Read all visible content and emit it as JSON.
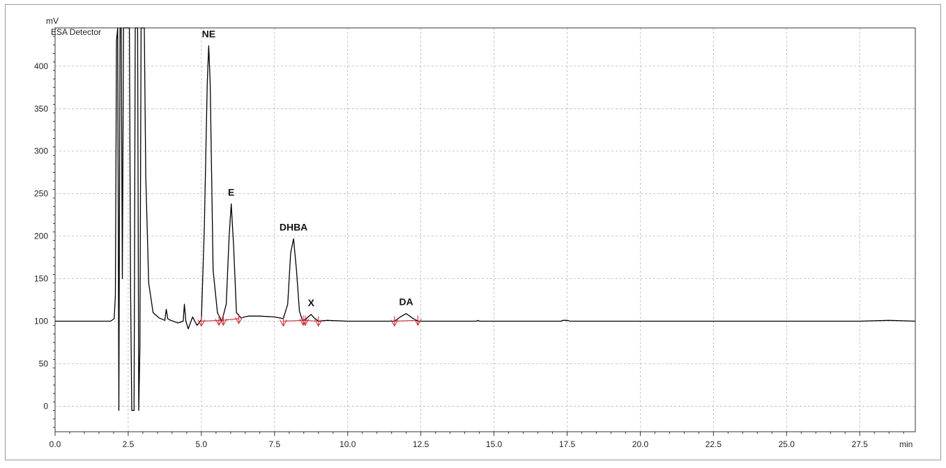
{
  "chart_data": {
    "type": "line",
    "title": "",
    "detector_label": "ESA Detector",
    "ylabel": "mV",
    "xlabel": "min",
    "xlim": [
      0,
      29.4
    ],
    "ylim": [
      -30,
      445
    ],
    "x_ticks": [
      0.0,
      2.5,
      5.0,
      7.5,
      10.0,
      12.5,
      15.0,
      17.5,
      20.0,
      22.5,
      25.0,
      27.5
    ],
    "x_tick_labels": [
      "0.0",
      "2.5",
      "5.0",
      "7.5",
      "10.0",
      "12.5",
      "15.0",
      "17.5",
      "20.0",
      "22.5",
      "25.0",
      "27.5"
    ],
    "y_ticks": [
      0,
      50,
      100,
      150,
      200,
      250,
      300,
      350,
      400
    ],
    "y_tick_labels": [
      "0",
      "50",
      "100",
      "150",
      "200",
      "250",
      "300",
      "350",
      "400"
    ],
    "grid": true,
    "trace_color": "#000000",
    "integration_color": "#d0343c",
    "series": [
      {
        "values_desc": "chromatogram trace",
        "x": [
          0,
          1.0,
          1.9,
          2.02,
          2.06,
          2.1,
          2.14,
          2.18,
          2.22,
          2.26,
          2.3,
          2.34,
          2.38,
          2.42,
          2.46,
          2.5,
          2.54,
          2.58,
          2.62,
          2.66,
          2.7,
          2.74,
          2.78,
          2.82,
          2.86,
          2.9,
          2.94,
          3.0,
          3.05,
          3.1,
          3.2,
          3.35,
          3.55,
          3.75,
          3.8,
          3.85,
          3.95,
          4.2,
          4.38,
          4.42,
          4.47,
          4.55,
          4.7,
          4.85,
          5.0,
          5.1,
          5.2,
          5.25,
          5.3,
          5.4,
          5.55,
          5.7,
          5.85,
          5.95,
          6.02,
          6.1,
          6.2,
          6.35,
          6.6,
          7.0,
          7.5,
          7.8,
          7.95,
          8.05,
          8.15,
          8.25,
          8.35,
          8.45,
          8.55,
          8.65,
          8.75,
          8.85,
          9.0,
          9.3,
          10.0,
          11.0,
          11.6,
          11.8,
          12.0,
          12.2,
          12.4,
          13.0,
          14.4,
          14.45,
          14.5,
          15.0,
          17.3,
          17.35,
          17.5,
          17.6,
          20.0,
          22.5,
          25.0,
          27.5,
          28.5,
          29.4
        ],
        "y": [
          100,
          100,
          100,
          103,
          130,
          430,
          445,
          -5,
          445,
          445,
          150,
          445,
          445,
          445,
          445,
          445,
          445,
          140,
          -5,
          -5,
          -5,
          445,
          445,
          445,
          -5,
          70,
          445,
          445,
          445,
          270,
          145,
          110,
          104,
          101,
          114,
          103,
          101,
          98,
          100,
          120,
          100,
          91,
          105,
          95,
          102,
          210,
          380,
          424,
          380,
          160,
          110,
          100,
          120,
          200,
          238,
          190,
          110,
          104,
          106,
          106,
          105,
          103,
          120,
          180,
          197,
          160,
          112,
          101,
          102,
          105,
          108,
          104,
          100,
          101,
          100,
          100,
          100,
          105,
          109,
          104,
          100,
          100,
          100,
          101,
          100,
          100,
          100,
          101,
          101,
          100,
          100,
          100,
          100,
          100,
          101,
          100
        ]
      }
    ],
    "peaks": [
      {
        "label": "NE",
        "x": 5.25,
        "y": 424
      },
      {
        "label": "E",
        "x": 6.02,
        "y": 238
      },
      {
        "label": "DHBA",
        "x": 8.15,
        "y": 197
      },
      {
        "label": "X",
        "x": 8.75,
        "y": 108
      },
      {
        "label": "DA",
        "x": 12.0,
        "y": 109
      }
    ],
    "baseline_segments": [
      {
        "x": [
          5.0,
          5.7
        ],
        "y": [
          100,
          101
        ]
      },
      {
        "x": [
          5.7,
          6.3
        ],
        "y": [
          101,
          103
        ]
      },
      {
        "x": [
          7.8,
          8.5
        ],
        "y": [
          100,
          101
        ]
      },
      {
        "x": [
          8.5,
          9.0
        ],
        "y": [
          101,
          100
        ]
      },
      {
        "x": [
          11.6,
          12.4
        ],
        "y": [
          100,
          101
        ]
      }
    ],
    "integration_markers": [
      {
        "x": 5.0,
        "y": 100
      },
      {
        "x": 5.6,
        "y": 101
      },
      {
        "x": 5.75,
        "y": 101
      },
      {
        "x": 6.28,
        "y": 103
      },
      {
        "x": 7.8,
        "y": 100
      },
      {
        "x": 8.48,
        "y": 101
      },
      {
        "x": 8.55,
        "y": 101
      },
      {
        "x": 9.0,
        "y": 100
      },
      {
        "x": 11.6,
        "y": 100
      },
      {
        "x": 12.4,
        "y": 101
      }
    ]
  }
}
